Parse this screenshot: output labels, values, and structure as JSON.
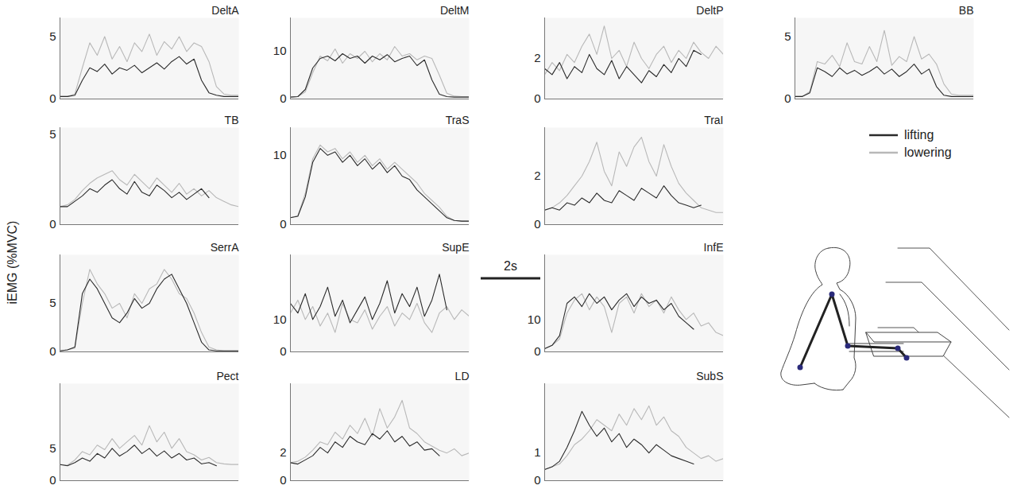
{
  "chart_data": {
    "type": "line",
    "y_label": "iEMG (%MVC)",
    "x": [
      0,
      0.25,
      0.5,
      0.75,
      1,
      1.25,
      1.5,
      1.75,
      2,
      2.25,
      2.5,
      2.75,
      3,
      3.25,
      3.5,
      3.75,
      4,
      4.25,
      4.5,
      4.75,
      5,
      5.25,
      5.5,
      5.75,
      6
    ],
    "xlim": [
      0,
      6
    ],
    "tick_labels": "y",
    "legend": "right",
    "scale_bar": {
      "label": "2s",
      "value": 2
    },
    "panels": [
      {
        "title": "DeltA",
        "ylim": [
          0,
          6.5
        ],
        "yticks": [
          0,
          5
        ],
        "series": [
          {
            "name": "lifting",
            "color": "#2b2b2b",
            "values": [
              0.2,
              0.2,
              0.3,
              1.5,
              2.5,
              2.2,
              2.8,
              2.0,
              2.5,
              2.3,
              2.7,
              2.1,
              2.5,
              2.9,
              2.4,
              3.0,
              3.4,
              2.8,
              3.2,
              1.5,
              0.5,
              0.3,
              0.2,
              0.2,
              0.2
            ]
          },
          {
            "name": "lowering",
            "color": "#b8b8b8",
            "values": [
              0.2,
              0.2,
              0.4,
              2.5,
              4.5,
              3.5,
              5.0,
              3.2,
              4.2,
              3.0,
              4.5,
              3.8,
              5.2,
              3.5,
              4.6,
              4.0,
              5.0,
              3.8,
              4.5,
              4.2,
              3.0,
              1.0,
              0.4,
              0.3,
              0.3
            ]
          }
        ]
      },
      {
        "title": "DeltM",
        "ylim": [
          0,
          17
        ],
        "yticks": [
          0,
          10
        ],
        "series": [
          {
            "name": "lifting",
            "color": "#2b2b2b",
            "values": [
              0.4,
              0.5,
              2.0,
              6.5,
              8.5,
              9.0,
              8.0,
              9.5,
              8.5,
              9.0,
              7.5,
              9.0,
              8.2,
              9.3,
              7.8,
              8.5,
              9.0,
              7.0,
              8.2,
              4.0,
              1.0,
              0.5,
              0.4,
              0.4,
              0.4
            ]
          },
          {
            "name": "lowering",
            "color": "#b8b8b8",
            "values": [
              0.4,
              0.5,
              1.5,
              5.5,
              9.0,
              8.0,
              10.5,
              7.5,
              9.5,
              8.5,
              10.0,
              7.8,
              9.5,
              8.2,
              11.0,
              9.0,
              9.5,
              8.2,
              9.0,
              8.5,
              5.0,
              1.2,
              0.6,
              0.5,
              0.5
            ]
          }
        ]
      },
      {
        "title": "DeltP",
        "ylim": [
          0,
          4
        ],
        "yticks": [
          0,
          2
        ],
        "series": [
          {
            "name": "lifting",
            "color": "#2b2b2b",
            "values": [
              1.5,
              1.2,
              1.8,
              1.0,
              1.6,
              1.3,
              2.2,
              1.5,
              1.2,
              1.9,
              1.0,
              1.6,
              1.2,
              0.8,
              1.4,
              1.1,
              1.7,
              1.3,
              2.0,
              1.6,
              2.4,
              2.2,
              null,
              null,
              null
            ]
          },
          {
            "name": "lowering",
            "color": "#b8b8b8",
            "values": [
              1.2,
              1.8,
              1.4,
              2.2,
              1.8,
              2.6,
              3.2,
              2.2,
              3.6,
              2.0,
              2.4,
              1.6,
              2.8,
              2.0,
              1.5,
              2.2,
              2.6,
              1.8,
              2.4,
              2.0,
              2.8,
              2.3,
              2.0,
              2.6,
              2.2
            ]
          }
        ]
      },
      {
        "title": "BB",
        "ylim": [
          0,
          6.5
        ],
        "yticks": [
          0,
          5
        ],
        "series": [
          {
            "name": "lifting",
            "color": "#2b2b2b",
            "values": [
              0.2,
              0.2,
              0.5,
              2.5,
              2.2,
              1.8,
              2.5,
              2.0,
              2.3,
              1.9,
              2.2,
              2.6,
              2.0,
              2.4,
              1.8,
              2.2,
              2.8,
              2.0,
              2.4,
              1.0,
              0.3,
              0.2,
              0.2,
              0.2,
              0.2
            ]
          },
          {
            "name": "lowering",
            "color": "#b8b8b8",
            "values": [
              0.2,
              0.2,
              0.6,
              3.0,
              2.8,
              3.5,
              2.6,
              4.5,
              3.0,
              2.8,
              4.2,
              3.0,
              5.5,
              2.7,
              3.4,
              3.0,
              5.0,
              3.2,
              3.6,
              2.8,
              1.2,
              0.4,
              0.3,
              0.3,
              0.3
            ]
          }
        ]
      },
      {
        "title": "TB",
        "ylim": [
          0,
          5.4
        ],
        "yticks": [
          0,
          5
        ],
        "series": [
          {
            "name": "lifting",
            "color": "#2b2b2b",
            "values": [
              1.0,
              1.0,
              1.3,
              1.6,
              2.0,
              1.8,
              2.2,
              2.5,
              2.0,
              1.7,
              2.4,
              1.8,
              1.6,
              2.2,
              1.9,
              1.5,
              1.8,
              1.4,
              1.7,
              2.0,
              1.5,
              null,
              null,
              null,
              null
            ]
          },
          {
            "name": "lowering",
            "color": "#b8b8b8",
            "values": [
              1.0,
              1.1,
              1.4,
              1.9,
              2.3,
              2.6,
              2.8,
              3.0,
              2.5,
              2.2,
              2.8,
              2.4,
              2.0,
              2.6,
              2.2,
              1.8,
              2.3,
              1.7,
              2.0,
              1.6,
              1.9,
              1.5,
              1.3,
              1.1,
              1.0
            ]
          }
        ]
      },
      {
        "title": "TraS",
        "ylim": [
          0,
          14
        ],
        "yticks": [
          0,
          10
        ],
        "series": [
          {
            "name": "lifting",
            "color": "#2b2b2b",
            "values": [
              1.0,
              1.2,
              4.0,
              9.0,
              11.0,
              10.0,
              10.5,
              9.0,
              10.0,
              8.5,
              9.5,
              8.0,
              9.0,
              7.5,
              8.5,
              7.0,
              6.5,
              5.0,
              4.0,
              3.0,
              2.0,
              1.0,
              0.6,
              0.5,
              0.5
            ]
          },
          {
            "name": "lowering",
            "color": "#b8b8b8",
            "values": [
              1.0,
              1.3,
              4.5,
              9.5,
              11.5,
              10.5,
              11.0,
              9.5,
              10.5,
              9.0,
              10.0,
              8.5,
              9.5,
              8.0,
              9.0,
              8.0,
              7.0,
              6.0,
              4.5,
              3.5,
              2.5,
              1.2,
              0.6,
              0.5,
              0.5
            ]
          }
        ]
      },
      {
        "title": "TraI",
        "ylim": [
          0,
          4
        ],
        "yticks": [
          0,
          2
        ],
        "series": [
          {
            "name": "lifting",
            "color": "#2b2b2b",
            "values": [
              0.6,
              0.7,
              0.6,
              0.9,
              0.8,
              1.1,
              0.9,
              1.3,
              1.0,
              0.9,
              1.4,
              1.2,
              1.0,
              1.5,
              1.3,
              1.1,
              1.6,
              1.2,
              0.9,
              0.8,
              0.7,
              0.8,
              null,
              null,
              null
            ]
          },
          {
            "name": "lowering",
            "color": "#b8b8b8",
            "values": [
              0.6,
              0.7,
              0.9,
              1.2,
              1.6,
              2.0,
              2.6,
              3.4,
              2.2,
              1.6,
              3.0,
              2.4,
              3.2,
              3.6,
              2.6,
              2.0,
              3.3,
              2.4,
              1.7,
              1.3,
              1.0,
              0.7,
              0.6,
              0.5,
              0.5
            ]
          }
        ]
      },
      {
        "title": "SerrA",
        "ylim": [
          0,
          10
        ],
        "yticks": [
          0,
          5
        ],
        "series": [
          {
            "name": "lifting",
            "color": "#2b2b2b",
            "values": [
              0.1,
              0.2,
              0.5,
              6.0,
              7.5,
              6.5,
              5.0,
              3.5,
              3.0,
              4.0,
              5.5,
              4.5,
              5.0,
              6.5,
              7.5,
              8.0,
              6.5,
              5.0,
              3.0,
              1.0,
              0.2,
              0.1,
              0.1,
              0.1,
              0.1
            ]
          },
          {
            "name": "lowering",
            "color": "#b8b8b8",
            "values": [
              0.1,
              0.2,
              0.4,
              5.0,
              8.5,
              7.0,
              6.0,
              4.5,
              5.0,
              3.5,
              6.0,
              5.0,
              6.5,
              7.0,
              8.5,
              7.5,
              6.0,
              5.5,
              4.0,
              2.0,
              0.5,
              0.2,
              0.1,
              0.1,
              0.1
            ]
          }
        ]
      },
      {
        "title": "SupE",
        "ylim": [
          0,
          30
        ],
        "yticks": [
          0,
          10
        ],
        "series": [
          {
            "name": "lifting",
            "color": "#2b2b2b",
            "values": [
              15,
              12,
              18,
              10,
              14,
              20,
              11,
              16,
              9,
              13,
              17,
              10,
              15,
              22,
              12,
              18,
              14,
              20,
              11,
              16,
              24,
              13,
              null,
              null,
              null
            ]
          },
          {
            "name": "lowering",
            "color": "#b8b8b8",
            "values": [
              12,
              16,
              10,
              14,
              8,
              12,
              6,
              15,
              10,
              9,
              13,
              7,
              11,
              14,
              8,
              12,
              10,
              15,
              9,
              6,
              12,
              14,
              10,
              13,
              11
            ]
          }
        ]
      },
      {
        "title": "InfE",
        "ylim": [
          0,
          30
        ],
        "yticks": [
          0,
          10
        ],
        "series": [
          {
            "name": "lifting",
            "color": "#2b2b2b",
            "values": [
              1,
              2,
              5,
              15,
              17,
              14,
              18,
              15,
              17,
              13,
              16,
              18,
              14,
              17,
              15,
              16,
              13,
              15,
              11,
              9,
              7,
              null,
              null,
              null,
              null
            ]
          },
          {
            "name": "lowering",
            "color": "#b8b8b8",
            "values": [
              1,
              2,
              4,
              12,
              16,
              18,
              13,
              17,
              14,
              6,
              15,
              17,
              12,
              18,
              14,
              16,
              12,
              17,
              13,
              10,
              12,
              8,
              9,
              6,
              5
            ]
          }
        ]
      },
      {
        "title": "Pect",
        "ylim": [
          0,
          15
        ],
        "yticks": [
          0,
          5
        ],
        "series": [
          {
            "name": "lifting",
            "color": "#2b2b2b",
            "values": [
              2.5,
              2.3,
              2.8,
              3.5,
              3.0,
              4.2,
              3.5,
              5.0,
              3.8,
              4.5,
              5.5,
              4.2,
              5.0,
              3.8,
              4.6,
              3.5,
              4.2,
              3.2,
              3.5,
              2.6,
              2.8,
              2.3,
              null,
              null,
              null
            ]
          },
          {
            "name": "lowering",
            "color": "#b8b8b8",
            "values": [
              2.5,
              2.4,
              3.2,
              4.5,
              4.0,
              5.5,
              4.8,
              6.5,
              5.0,
              6.0,
              7.0,
              5.5,
              8.5,
              6.0,
              7.5,
              5.0,
              6.5,
              4.5,
              4.0,
              3.2,
              3.6,
              2.8,
              2.6,
              2.5,
              2.5
            ]
          }
        ]
      },
      {
        "title": "LD",
        "ylim": [
          0,
          7
        ],
        "yticks": [
          0,
          2
        ],
        "series": [
          {
            "name": "lifting",
            "color": "#2b2b2b",
            "values": [
              1.3,
              1.2,
              1.5,
              1.8,
              2.4,
              2.0,
              2.8,
              2.4,
              3.2,
              2.8,
              2.6,
              3.4,
              3.0,
              3.6,
              2.8,
              3.2,
              2.5,
              2.8,
              2.2,
              2.3,
              1.8,
              null,
              null,
              null,
              null
            ]
          },
          {
            "name": "lowering",
            "color": "#b8b8b8",
            "values": [
              1.3,
              1.4,
              1.7,
              2.2,
              2.8,
              2.6,
              3.5,
              3.0,
              4.0,
              3.4,
              4.5,
              3.2,
              5.2,
              3.8,
              4.6,
              5.8,
              3.8,
              3.4,
              2.8,
              2.5,
              2.2,
              2.0,
              2.3,
              1.8,
              2.0
            ]
          }
        ]
      },
      {
        "title": "SubS",
        "ylim": [
          0,
          3.5
        ],
        "yticks": [
          0,
          1
        ],
        "series": [
          {
            "name": "lifting",
            "color": "#2b2b2b",
            "values": [
              0.4,
              0.5,
              0.7,
              1.2,
              1.8,
              2.5,
              2.0,
              1.6,
              1.9,
              1.4,
              1.7,
              1.2,
              1.5,
              1.3,
              1.0,
              1.3,
              1.1,
              0.9,
              0.8,
              0.7,
              0.6,
              null,
              null,
              null,
              null
            ]
          },
          {
            "name": "lowering",
            "color": "#b8b8b8",
            "values": [
              0.4,
              0.5,
              0.6,
              0.9,
              1.3,
              1.5,
              1.8,
              2.2,
              2.0,
              1.8,
              2.4,
              2.0,
              2.6,
              2.2,
              2.7,
              2.0,
              2.3,
              1.8,
              1.6,
              1.2,
              1.0,
              0.8,
              0.9,
              0.7,
              0.8
            ]
          }
        ]
      }
    ]
  }
}
